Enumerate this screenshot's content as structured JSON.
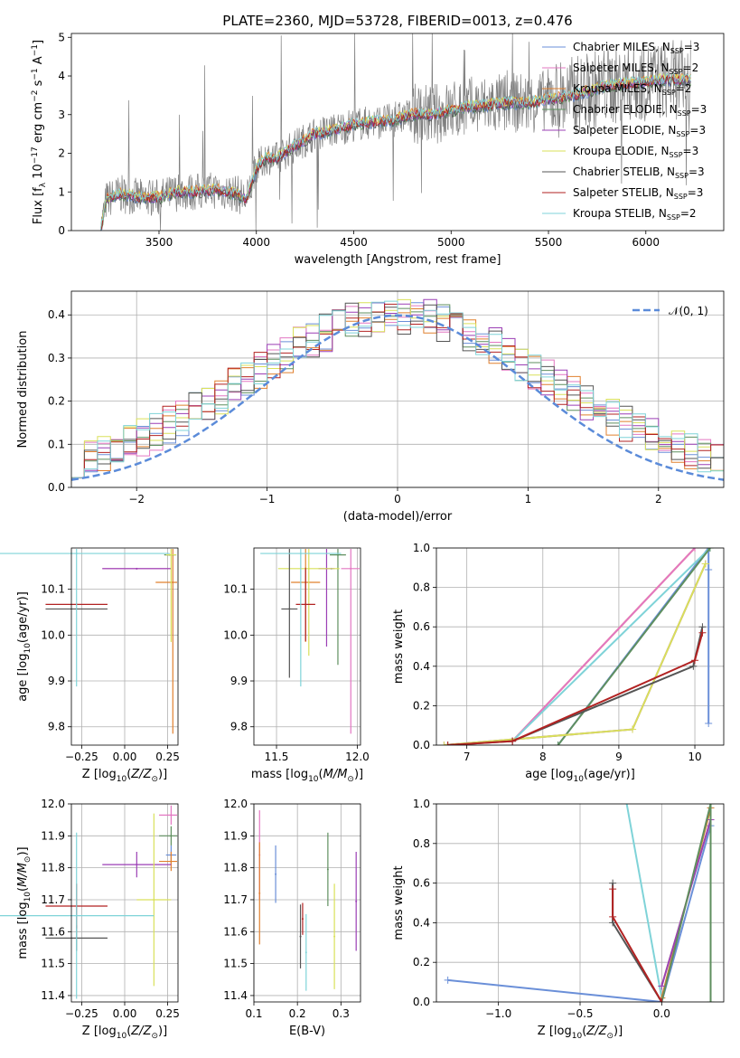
{
  "chart_data": [
    {
      "panel": "spectrum",
      "type": "line",
      "title": "PLATE=2360, MJD=53728, FIBERID=0013, z=0.476",
      "xlabel": "wavelength [Angstrom, rest frame]",
      "ylabel": "Flux [f_λ 10^-17 erg cm^-2 s^-1 A^-1]",
      "xlim": [
        3050,
        6400
      ],
      "ylim": [
        0,
        5.1
      ],
      "xticks": [
        "3500",
        "4000",
        "4500",
        "5000",
        "5500",
        "6000"
      ],
      "yticks": [
        "0",
        "1",
        "2",
        "3",
        "4",
        "5"
      ],
      "grid": false,
      "legend_position": "upper-right",
      "data_color": "#7f7f7f",
      "continuum": {
        "x": [
          3200,
          3230,
          3300,
          3400,
          3500,
          3600,
          3700,
          3800,
          3900,
          3950,
          4000,
          4050,
          4100,
          4200,
          4300,
          4400,
          4500,
          4600,
          4700,
          4800,
          4900,
          5000,
          5100,
          5200,
          5300,
          5400,
          5500,
          5600,
          5700,
          5800,
          5900,
          6000,
          6100,
          6200
        ],
        "y": [
          0.0,
          0.8,
          0.95,
          0.85,
          0.85,
          1.0,
          1.0,
          1.05,
          0.95,
          0.8,
          1.6,
          1.9,
          1.85,
          2.2,
          2.5,
          2.6,
          2.75,
          2.8,
          2.85,
          3.0,
          3.0,
          3.1,
          3.2,
          3.25,
          3.3,
          3.3,
          3.4,
          3.45,
          3.6,
          3.75,
          3.8,
          3.85,
          3.9,
          3.9
        ]
      },
      "legend": [
        {
          "label": "Chabrier MILES, N",
          "sub": "SSP",
          "tail": "=3",
          "color": "#6a8fd8"
        },
        {
          "label": "Salpeter MILES, N",
          "sub": "SSP",
          "tail": "=2",
          "color": "#e377c2"
        },
        {
          "label": "Kroupa MILES, N",
          "sub": "SSP",
          "tail": "=2",
          "color": "#e0802f"
        },
        {
          "label": "Chabrier ELODIE, N",
          "sub": "SSP",
          "tail": "=3",
          "color": "#5f8f5f"
        },
        {
          "label": "Salpeter ELODIE, N",
          "sub": "SSP",
          "tail": "=3",
          "color": "#9b3fb5"
        },
        {
          "label": "Kroupa ELODIE, N",
          "sub": "SSP",
          "tail": "=3",
          "color": "#d9e05a"
        },
        {
          "label": "Chabrier STELIB, N",
          "sub": "SSP",
          "tail": "=3",
          "color": "#555555"
        },
        {
          "label": "Salpeter STELIB, N",
          "sub": "SSP",
          "tail": "=3",
          "color": "#b22222"
        },
        {
          "label": "Kroupa STELIB, N",
          "sub": "SSP",
          "tail": "=2",
          "color": "#7fd3d8"
        }
      ]
    },
    {
      "panel": "residual-histogram",
      "type": "line",
      "xlabel": "(data-model)/error",
      "ylabel": "Normed distribution",
      "xlim": [
        -2.5,
        2.5
      ],
      "ylim": [
        0,
        0.455
      ],
      "xticks": [
        "−2",
        "−1",
        "0",
        "1",
        "2"
      ],
      "yticks": [
        "0.0",
        "0.1",
        "0.2",
        "0.3",
        "0.4"
      ],
      "grid": true,
      "legend_position": "upper-right",
      "reference": {
        "label": "𝒩(0, 1)",
        "mean": 0,
        "sigma": 1,
        "color": "#5b8bd9"
      },
      "bin_width": 0.1
    },
    {
      "panel": "age-vs-Z",
      "type": "scatter",
      "xlabel": "Z [log10(Z/Z⊙)]",
      "ylabel": "age  [log10(age/yr)]",
      "xlim": [
        -0.31,
        0.31
      ],
      "ylim": [
        9.76,
        10.19
      ],
      "xticks": [
        "−0.25",
        "0.00",
        "0.25"
      ],
      "yticks": [
        "9.8",
        "9.9",
        "10.0",
        "10.1"
      ],
      "grid": true,
      "points": [
        {
          "x": 0.27,
          "y": 10.175,
          "xerr": 0.03,
          "yerr": 0.0,
          "color": "#6a8fd8"
        },
        {
          "x": 0.07,
          "y": 10.145,
          "xerr": 0.2,
          "yerr": 0.0,
          "color": "#e377c2"
        },
        {
          "x": 0.28,
          "y": 10.115,
          "xerr": 0.1,
          "yerr": 0.33,
          "color": "#e0802f"
        },
        {
          "x": 0.26,
          "y": 10.175,
          "xerr": 0.03,
          "yerr": 0.0,
          "color": "#5f8f5f"
        },
        {
          "x": 0.07,
          "y": 10.145,
          "xerr": 0.2,
          "yerr": 0.0,
          "color": "#9b3fb5"
        },
        {
          "x": 0.27,
          "y": 10.175,
          "xerr": 0.03,
          "yerr": 0.19,
          "color": "#d9e05a"
        },
        {
          "x": -0.28,
          "y": 10.057,
          "xerr": 0.18,
          "yerr": 0.0,
          "color": "#555555"
        },
        {
          "x": -0.28,
          "y": 10.067,
          "xerr": 0.18,
          "yerr": 0.0,
          "color": "#b22222"
        },
        {
          "x": -0.28,
          "y": 10.178,
          "xerr": 0.54,
          "yerr": 0.29,
          "color": "#7fd3d8"
        }
      ]
    },
    {
      "panel": "age-vs-mass",
      "type": "scatter",
      "xlabel": "mass [log10(M/M⊙)]",
      "ylabel": "",
      "xlim": [
        11.36,
        12.02
      ],
      "ylim": [
        9.76,
        10.19
      ],
      "xticks": [
        "11.5",
        "12.0"
      ],
      "yticks": [
        "9.8",
        "9.9",
        "10.0",
        "10.1"
      ],
      "grid": true,
      "points": [
        {
          "x": 11.84,
          "y": 10.145,
          "xerr": 0.0,
          "yerr": 0.0,
          "color": "#6a8fd8"
        },
        {
          "x": 11.96,
          "y": 10.145,
          "xerr": 0.06,
          "yerr": 0.36,
          "color": "#e377c2"
        },
        {
          "x": 11.68,
          "y": 10.115,
          "xerr": 0.09,
          "yerr": 0.13,
          "color": "#e0802f"
        },
        {
          "x": 11.88,
          "y": 10.175,
          "xerr": 0.05,
          "yerr": 0.24,
          "color": "#5f8f5f"
        },
        {
          "x": 11.81,
          "y": 10.145,
          "xerr": 0.05,
          "yerr": 0.17,
          "color": "#9b3fb5"
        },
        {
          "x": 11.7,
          "y": 10.145,
          "xerr": 0.19,
          "yerr": 0.19,
          "color": "#d9e05a"
        },
        {
          "x": 11.58,
          "y": 10.057,
          "xerr": 0.05,
          "yerr": 0.15,
          "color": "#555555"
        },
        {
          "x": 11.68,
          "y": 10.067,
          "xerr": 0.06,
          "yerr": 0.08,
          "color": "#b22222"
        },
        {
          "x": 11.65,
          "y": 10.178,
          "xerr": 0.25,
          "yerr": 0.29,
          "color": "#7fd3d8"
        }
      ]
    },
    {
      "panel": "mass-weight-vs-age",
      "type": "line",
      "xlabel": "age  [log10(age/yr)]",
      "ylabel": "mass weight",
      "xlim": [
        6.6,
        10.38
      ],
      "ylim": [
        0,
        1.0
      ],
      "xticks": [
        "7",
        "8",
        "9",
        "10"
      ],
      "yticks": [
        "0.0",
        "0.2",
        "0.4",
        "0.6",
        "0.8",
        "1.0"
      ],
      "grid": true,
      "series": [
        {
          "color": "#6a8fd8",
          "x": [
            8.2,
            10.18,
            10.18,
            10.18
          ],
          "y": [
            0.0,
            1.0,
            0.89,
            0.11
          ]
        },
        {
          "color": "#e0802f",
          "x": [
            7.6,
            10.0
          ],
          "y": [
            0.02,
            1.0
          ]
        },
        {
          "color": "#e377c2",
          "x": [
            7.6,
            10.0
          ],
          "y": [
            0.02,
            1.0
          ]
        },
        {
          "color": "#7fd3d8",
          "x": [
            7.6,
            10.2
          ],
          "y": [
            0.02,
            1.0
          ]
        },
        {
          "color": "#5f8f5f",
          "x": [
            8.2,
            10.2
          ],
          "y": [
            0.0,
            1.0
          ]
        },
        {
          "color": "#9b3fb5",
          "x": [
            6.7,
            9.18,
            10.14
          ],
          "y": [
            0.0,
            0.08,
            0.92
          ]
        },
        {
          "color": "#d9e05a",
          "x": [
            6.7,
            9.18,
            10.14
          ],
          "y": [
            0.0,
            0.08,
            0.92
          ]
        },
        {
          "color": "#555555",
          "x": [
            6.75,
            7.6,
            9.98,
            10.1
          ],
          "y": [
            0.0,
            0.02,
            0.4,
            0.6
          ]
        },
        {
          "color": "#b22222",
          "x": [
            6.75,
            7.6,
            10.0,
            10.1
          ],
          "y": [
            0.0,
            0.02,
            0.43,
            0.57
          ]
        }
      ]
    },
    {
      "panel": "mass-vs-Z",
      "type": "scatter",
      "xlabel": "Z [log10(Z/Z⊙)]",
      "ylabel": "mass [log10(M/M⊙)]",
      "xlim": [
        -0.31,
        0.31
      ],
      "ylim": [
        11.38,
        12.0
      ],
      "xticks": [
        "−0.25",
        "0.00",
        "0.25"
      ],
      "yticks": [
        "11.4",
        "11.5",
        "11.6",
        "11.7",
        "11.8",
        "11.9",
        "12.0"
      ],
      "grid": true,
      "points": [
        {
          "x": 0.27,
          "y": 11.84,
          "xerr": 0.03,
          "yerr": 0.03,
          "color": "#6a8fd8"
        },
        {
          "x": 0.27,
          "y": 11.965,
          "xerr": 0.07,
          "yerr": 0.03,
          "color": "#e377c2"
        },
        {
          "x": 0.27,
          "y": 11.82,
          "xerr": 0.07,
          "yerr": 0.03,
          "color": "#e0802f"
        },
        {
          "x": 0.27,
          "y": 11.9,
          "xerr": 0.07,
          "yerr": 0.03,
          "color": "#5f8f5f"
        },
        {
          "x": 0.07,
          "y": 11.81,
          "xerr": 0.2,
          "yerr": 0.04,
          "color": "#9b3fb5"
        },
        {
          "x": 0.17,
          "y": 11.7,
          "xerr": 0.1,
          "yerr": 0.27,
          "color": "#d9e05a"
        },
        {
          "x": -0.28,
          "y": 11.58,
          "xerr": 0.18,
          "yerr": 0.04,
          "color": "#555555"
        },
        {
          "x": -0.28,
          "y": 11.68,
          "xerr": 0.18,
          "yerr": 0.07,
          "color": "#b22222"
        },
        {
          "x": -0.28,
          "y": 11.65,
          "xerr": 0.45,
          "yerr": 0.26,
          "color": "#7fd3d8"
        }
      ]
    },
    {
      "panel": "mass-vs-EBV",
      "type": "scatter",
      "xlabel": "E(B-V)",
      "ylabel": "",
      "xlim": [
        0.1,
        0.345
      ],
      "ylim": [
        11.38,
        12.0
      ],
      "xticks": [
        "0.1",
        "0.2",
        "0.3"
      ],
      "yticks": [
        "11.4",
        "11.5",
        "11.6",
        "11.7",
        "11.8",
        "11.9",
        "12.0"
      ],
      "grid": true,
      "points": [
        {
          "x": 0.15,
          "y": 11.78,
          "xerr": 0.0,
          "yerr": 0.09,
          "color": "#6a8fd8"
        },
        {
          "x": 0.113,
          "y": 11.84,
          "xerr": 0.0,
          "yerr": 0.14,
          "color": "#e377c2"
        },
        {
          "x": 0.113,
          "y": 11.72,
          "xerr": 0.0,
          "yerr": 0.16,
          "color": "#e0802f"
        },
        {
          "x": 0.27,
          "y": 11.795,
          "xerr": 0.0,
          "yerr": 0.115,
          "color": "#5f8f5f"
        },
        {
          "x": 0.335,
          "y": 11.695,
          "xerr": 0.0,
          "yerr": 0.155,
          "color": "#9b3fb5"
        },
        {
          "x": 0.285,
          "y": 11.585,
          "xerr": 0.0,
          "yerr": 0.165,
          "color": "#d9e05a"
        },
        {
          "x": 0.207,
          "y": 11.585,
          "xerr": 0.0,
          "yerr": 0.1,
          "color": "#555555"
        },
        {
          "x": 0.212,
          "y": 11.64,
          "xerr": 0.0,
          "yerr": 0.05,
          "color": "#b22222"
        },
        {
          "x": 0.22,
          "y": 11.535,
          "xerr": 0.0,
          "yerr": 0.12,
          "color": "#7fd3d8"
        }
      ]
    },
    {
      "panel": "mass-weight-vs-Z",
      "type": "line",
      "xlabel": "Z [log10(Z/Z⊙)]",
      "ylabel": "mass weight",
      "xlim": [
        -1.38,
        0.38
      ],
      "ylim": [
        0,
        1.0
      ],
      "xticks": [
        "−1.0",
        "−0.5",
        "0.0"
      ],
      "yticks": [
        "0.0",
        "0.2",
        "0.4",
        "0.6",
        "0.8",
        "1.0"
      ],
      "grid": true,
      "series": [
        {
          "color": "#6a8fd8",
          "x": [
            -1.31,
            0.0,
            0.3
          ],
          "y": [
            0.11,
            0.0,
            0.89
          ]
        },
        {
          "color": "#7fd3d8",
          "x": [
            -0.28,
            0.0,
            0.3
          ],
          "y": [
            1.3,
            0.02,
            0.98
          ]
        },
        {
          "color": "#e0802f",
          "x": [
            0.0,
            0.3
          ],
          "y": [
            0.02,
            0.98
          ]
        },
        {
          "color": "#d9e05a",
          "x": [
            0.0,
            0.3
          ],
          "y": [
            0.08,
            0.92
          ]
        },
        {
          "color": "#9b3fb5",
          "x": [
            0.0,
            0.3
          ],
          "y": [
            0.08,
            0.92
          ]
        },
        {
          "color": "#5f8f5f",
          "x": [
            0.0,
            0.3,
            0.3
          ],
          "y": [
            0.0,
            1.0,
            0.0
          ]
        },
        {
          "color": "#555555",
          "x": [
            -0.3,
            -0.3,
            0.0
          ],
          "y": [
            0.6,
            0.4,
            0.0
          ]
        },
        {
          "color": "#b22222",
          "x": [
            -0.3,
            -0.3,
            0.0
          ],
          "y": [
            0.57,
            0.43,
            0.0
          ]
        }
      ]
    }
  ]
}
